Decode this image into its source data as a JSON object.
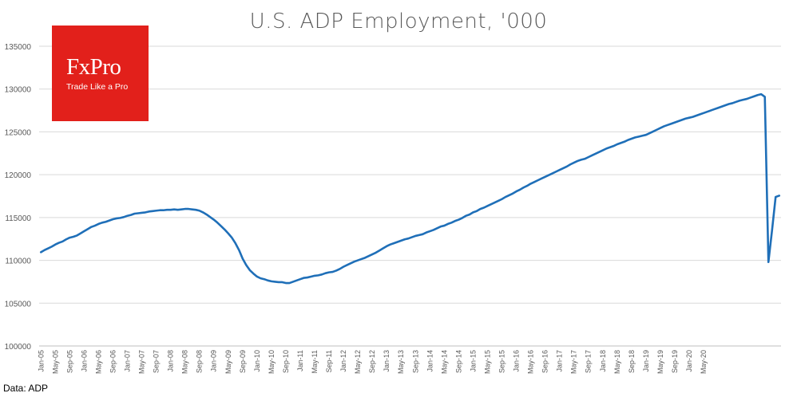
{
  "chart_data": {
    "type": "line",
    "title": "U.S. ADP Employment, '000",
    "xlabel": "",
    "ylabel": "",
    "ylim": [
      100000,
      135000
    ],
    "yticks": [
      "135000",
      "130000",
      "125000",
      "120000",
      "115000",
      "110000",
      "105000",
      "100000"
    ],
    "xtick_labels": [
      "Jan-05",
      "May-05",
      "Sep-05",
      "Jan-06",
      "May-06",
      "Sep-06",
      "Jan-07",
      "May-07",
      "Sep-07",
      "Jan-08",
      "May-08",
      "Sep-08",
      "Jan-09",
      "May-09",
      "Sep-09",
      "Jan-10",
      "May-10",
      "Sep-10",
      "Jan-11",
      "May-11",
      "Sep-11",
      "Jan-12",
      "May-12",
      "Sep-12",
      "Jan-13",
      "May-13",
      "Sep-13",
      "Jan-14",
      "May-14",
      "Sep-14",
      "Jan-15",
      "May-15",
      "Sep-15",
      "Jan-16",
      "May-16",
      "Sep-16",
      "Jan-17",
      "May-17",
      "Sep-17",
      "Jan-18",
      "May-18",
      "Sep-18",
      "Jan-19",
      "May-19",
      "Sep-19",
      "Jan-20",
      "May-20"
    ],
    "series": [
      {
        "name": "U.S. ADP Employment",
        "color": "#1f6fb8",
        "values": [
          110950,
          111200,
          111400,
          111600,
          111850,
          112050,
          112200,
          112450,
          112650,
          112750,
          112900,
          113150,
          113400,
          113650,
          113900,
          114050,
          114250,
          114400,
          114500,
          114650,
          114800,
          114900,
          114950,
          115050,
          115200,
          115300,
          115450,
          115500,
          115550,
          115600,
          115700,
          115750,
          115800,
          115850,
          115850,
          115900,
          115900,
          115950,
          115900,
          115950,
          116000,
          116000,
          115950,
          115900,
          115800,
          115600,
          115350,
          115050,
          114750,
          114400,
          114000,
          113600,
          113150,
          112650,
          112000,
          111200,
          110200,
          109450,
          108850,
          108450,
          108100,
          107900,
          107800,
          107650,
          107550,
          107500,
          107450,
          107450,
          107350,
          107350,
          107500,
          107650,
          107800,
          107950,
          108000,
          108100,
          108200,
          108250,
          108350,
          108500,
          108600,
          108650,
          108800,
          109000,
          109250,
          109450,
          109650,
          109850,
          110000,
          110150,
          110300,
          110500,
          110700,
          110900,
          111150,
          111400,
          111650,
          111850,
          112000,
          112150,
          112300,
          112450,
          112550,
          112700,
          112850,
          112950,
          113050,
          113250,
          113400,
          113550,
          113750,
          113950,
          114050,
          114250,
          114400,
          114600,
          114750,
          114950,
          115200,
          115350,
          115600,
          115750,
          116000,
          116150,
          116350,
          116550,
          116750,
          116950,
          117150,
          117400,
          117600,
          117800,
          118050,
          118250,
          118500,
          118700,
          118950,
          119150,
          119350,
          119550,
          119750,
          119950,
          120150,
          120350,
          120550,
          120750,
          120950,
          121200,
          121400,
          121600,
          121750,
          121850,
          122050,
          122250,
          122450,
          122650,
          122850,
          123050,
          123200,
          123350,
          123550,
          123700,
          123850,
          124050,
          124200,
          124350,
          124450,
          124550,
          124650,
          124850,
          125050,
          125250,
          125450,
          125650,
          125800,
          125950,
          126100,
          126250,
          126400,
          126550,
          126650,
          126750,
          126900,
          127050,
          127200,
          127350,
          127500,
          127650,
          127800,
          127950,
          128100,
          128250,
          128350,
          128500,
          128650,
          128750,
          128850,
          129000,
          129150,
          129300,
          129400,
          129100,
          109800,
          113500,
          117400,
          117550
        ]
      }
    ]
  },
  "logo": {
    "brand": "FxPro",
    "tagline": "Trade Like a Pro"
  },
  "source": "Data: ADP"
}
